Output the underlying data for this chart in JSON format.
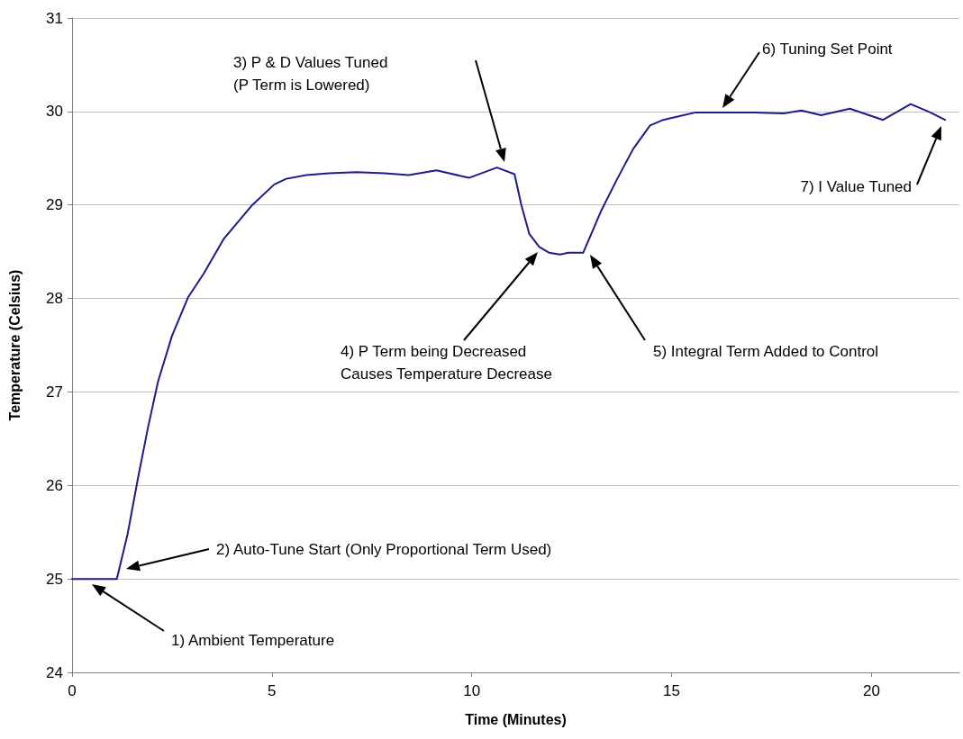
{
  "chart_data": {
    "type": "line",
    "xlabel": "Time (Minutes)",
    "ylabel": "Temperature (Celsius)",
    "xlim": [
      0,
      22.2
    ],
    "xticks": [
      0,
      5,
      10,
      15,
      20
    ],
    "ylim": [
      24,
      31
    ],
    "yticks": [
      24,
      25,
      26,
      27,
      28,
      29,
      30,
      31
    ],
    "grid": "y",
    "marker": "none",
    "line_style": "solid",
    "series": [
      {
        "color": "#1c1c8c",
        "x": [
          0,
          1.12,
          1.39,
          1.65,
          1.9,
          2.15,
          2.5,
          2.9,
          3.3,
          3.8,
          4.51,
          5.06,
          5.36,
          5.86,
          6.42,
          7.12,
          7.82,
          8.42,
          9.12,
          9.93,
          10.63,
          11.07,
          11.24,
          11.44,
          11.69,
          11.93,
          12.21,
          12.42,
          12.79,
          13.24,
          13.64,
          14.04,
          14.46,
          14.79,
          15.6,
          17.07,
          17.8,
          18.25,
          18.74,
          19.46,
          20.29,
          20.98,
          21.47,
          21.84
        ],
        "values": [
          25,
          25,
          25.48,
          26.08,
          26.62,
          27.11,
          27.6,
          28.01,
          28.27,
          28.64,
          29.0,
          29.22,
          29.28,
          29.32,
          29.34,
          29.35,
          29.34,
          29.32,
          29.37,
          29.29,
          29.4,
          29.33,
          29.0,
          28.69,
          28.55,
          28.49,
          28.47,
          28.49,
          28.49,
          28.94,
          29.28,
          29.6,
          29.85,
          29.91,
          29.99,
          29.99,
          29.98,
          30.01,
          29.96,
          30.03,
          29.91,
          30.08,
          29.99,
          29.91
        ]
      }
    ],
    "annotations": [
      "1) Ambient Temperature",
      "2) Auto-Tune Start (Only Proportional Term Used)",
      "3) P & D Values Tuned\n(P Term is Lowered)",
      "4) P Term being Decreased\nCauses Temperature Decrease",
      "5) Integral Term Added to Control",
      "6) Tuning Set Point",
      "7) I Value Tuned"
    ]
  }
}
